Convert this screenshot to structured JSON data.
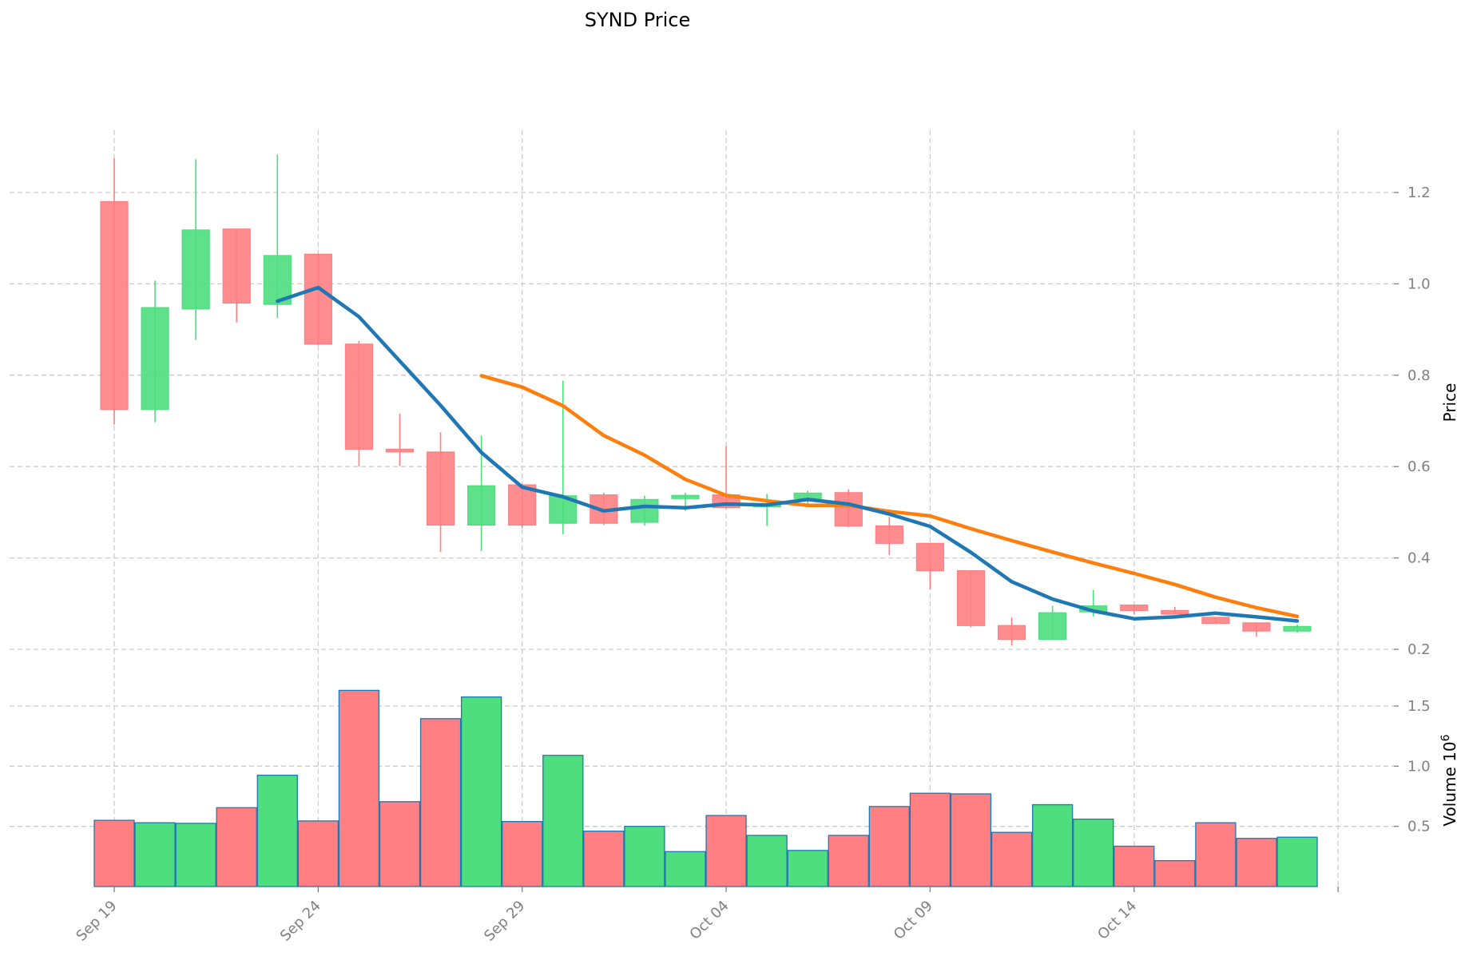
{
  "chart_data": {
    "type": "candlestick",
    "title": "SYND Price",
    "price_axis": {
      "label": "Price",
      "ylim": [
        0.2,
        1.3
      ],
      "ticks": [
        0.2,
        0.4,
        0.6,
        0.8,
        1.0,
        1.2
      ],
      "tick_labels": [
        "0.2",
        "0.4",
        "0.6",
        "0.8",
        "1.0",
        "1.2"
      ]
    },
    "volume_axis": {
      "label": "Volume",
      "exponent_label": "6",
      "scale": 1000000,
      "ylim": [
        0,
        1.6
      ],
      "ticks": [
        0.5,
        1.0,
        1.5
      ],
      "tick_labels": [
        "0.5",
        "1.0",
        "1.5"
      ]
    },
    "x_ticks": [
      {
        "index": 0,
        "label": "Sep 19"
      },
      {
        "index": 5,
        "label": "Sep 24"
      },
      {
        "index": 10,
        "label": "Sep 29"
      },
      {
        "index": 15,
        "label": "Oct 04"
      },
      {
        "index": 20,
        "label": "Oct 09"
      },
      {
        "index": 25,
        "label": "Oct 14"
      }
    ],
    "dates": [
      "Sep 19",
      "Sep 20",
      "Sep 21",
      "Sep 22",
      "Sep 23",
      "Sep 24",
      "Sep 25",
      "Sep 26",
      "Sep 27",
      "Sep 28",
      "Sep 29",
      "Sep 30",
      "Oct 01",
      "Oct 02",
      "Oct 03",
      "Oct 04",
      "Oct 05",
      "Oct 06",
      "Oct 07",
      "Oct 08",
      "Oct 09",
      "Oct 10",
      "Oct 11",
      "Oct 12",
      "Oct 13",
      "Oct 14",
      "Oct 15",
      "Oct 16",
      "Oct 17",
      "Oct 18"
    ],
    "open": [
      1.18,
      0.725,
      0.945,
      1.12,
      0.955,
      1.065,
      0.868,
      0.638,
      0.632,
      0.472,
      0.56,
      0.476,
      0.538,
      0.478,
      0.53,
      0.538,
      0.512,
      0.53,
      0.543,
      0.47,
      0.432,
      0.372,
      0.252,
      0.222,
      0.282,
      0.297,
      0.285,
      0.27,
      0.258,
      0.24
    ],
    "high": [
      1.275,
      1.007,
      1.273,
      1.12,
      1.283,
      1.065,
      0.875,
      0.716,
      0.675,
      0.668,
      0.562,
      0.788,
      0.543,
      0.536,
      0.543,
      0.645,
      0.54,
      0.547,
      0.55,
      0.49,
      0.432,
      0.372,
      0.27,
      0.295,
      0.33,
      0.297,
      0.293,
      0.27,
      0.258,
      0.254
    ],
    "low": [
      0.692,
      0.697,
      0.877,
      0.916,
      0.925,
      0.865,
      0.6,
      0.601,
      0.413,
      0.415,
      0.465,
      0.452,
      0.472,
      0.471,
      0.503,
      0.508,
      0.47,
      0.515,
      0.467,
      0.406,
      0.331,
      0.248,
      0.208,
      0.222,
      0.272,
      0.276,
      0.278,
      0.255,
      0.228,
      0.236
    ],
    "close": [
      0.725,
      0.948,
      1.118,
      0.958,
      1.062,
      0.868,
      0.638,
      0.632,
      0.472,
      0.558,
      0.472,
      0.536,
      0.476,
      0.528,
      0.537,
      0.51,
      0.518,
      0.542,
      0.47,
      0.432,
      0.372,
      0.252,
      0.222,
      0.28,
      0.295,
      0.285,
      0.277,
      0.257,
      0.24,
      0.25
    ],
    "volume": [
      0.55,
      0.53,
      0.525,
      0.655,
      0.925,
      0.545,
      1.63,
      0.705,
      1.395,
      1.575,
      0.54,
      1.09,
      0.46,
      0.5,
      0.29,
      0.59,
      0.425,
      0.3,
      0.425,
      0.665,
      0.775,
      0.77,
      0.45,
      0.68,
      0.56,
      0.335,
      0.215,
      0.53,
      0.4,
      0.41
    ],
    "ma_short": {
      "start_index": 4,
      "values": [
        0.962,
        0.992,
        0.928,
        0.831,
        0.734,
        0.631,
        0.555,
        0.534,
        0.503,
        0.513,
        0.51,
        0.518,
        0.516,
        0.528,
        0.518,
        0.496,
        0.469,
        0.412,
        0.348,
        0.31,
        0.284,
        0.267,
        0.271,
        0.279,
        0.271,
        0.262
      ],
      "color": "#1f77b4"
    },
    "ma_long": {
      "start_index": 9,
      "values": [
        0.799,
        0.774,
        0.733,
        0.668,
        0.625,
        0.572,
        0.537,
        0.525,
        0.515,
        0.515,
        0.502,
        0.492,
        0.464,
        0.438,
        0.413,
        0.389,
        0.366,
        0.342,
        0.314,
        0.291,
        0.272
      ],
      "color": "#ff7f0e"
    },
    "colors": {
      "up": "#4ede7e",
      "down": "#ff7f83",
      "volume_edge": "#1f77b4",
      "grid": "#cccccc"
    }
  }
}
